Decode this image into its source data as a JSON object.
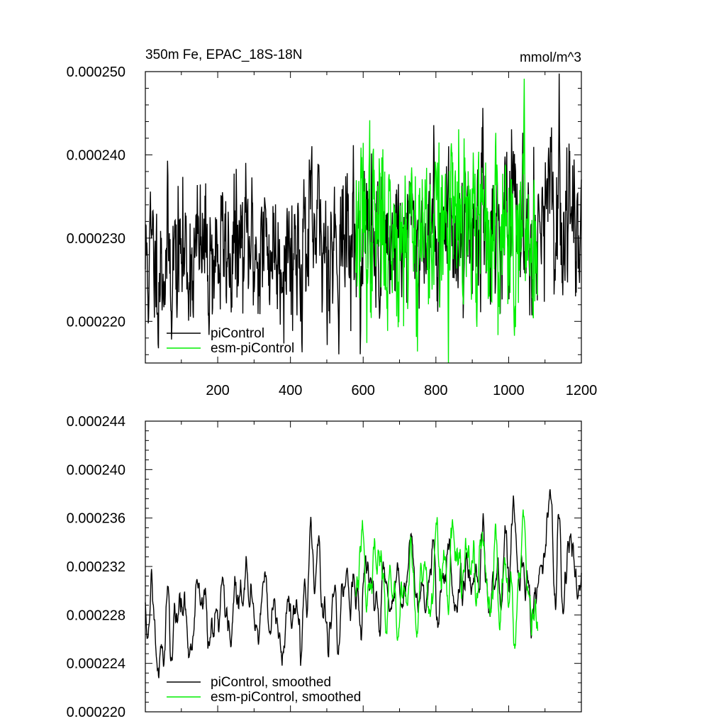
{
  "chart_data": [
    {
      "type": "line",
      "title": "350m Fe, EPAC_18S-18N",
      "units": "mmol/m^3",
      "xlim": [
        1,
        1200
      ],
      "ylim": [
        0.000215,
        0.00025
      ],
      "xticks": [
        200,
        400,
        600,
        800,
        1000,
        1200
      ],
      "xtick_labels": [
        "200",
        "400",
        "600",
        "800",
        "1000",
        "1200"
      ],
      "yticks": [
        0.00022,
        0.00023,
        0.00024,
        0.00025
      ],
      "ytick_labels": [
        "0.000220",
        "0.000230",
        "0.000240",
        "0.000250"
      ],
      "legend_position": "bottom-left",
      "series": [
        {
          "name": "piControl",
          "color": "#000000",
          "x_start": 1,
          "x_end": 1200,
          "n": 1200,
          "mean": 0.00023,
          "trend_per_step": 4.5e-09,
          "std": 4.5e-06,
          "seed": 11
        },
        {
          "name": "esm-piControl",
          "color": "#00ee00",
          "x_start": 580,
          "x_end": 1080,
          "n": 500,
          "mean": 0.000231,
          "trend_per_step": 0.0,
          "std": 5.5e-06,
          "seed": 37
        }
      ]
    },
    {
      "type": "line",
      "title": "",
      "units": "",
      "xlim": [
        1,
        1200
      ],
      "ylim": [
        0.00022,
        0.000244
      ],
      "xticks": [
        200,
        400,
        600,
        800,
        1000,
        1200
      ],
      "xtick_labels": [],
      "yticks": [
        0.00022,
        0.000224,
        0.000228,
        0.000232,
        0.000236,
        0.00024,
        0.000244
      ],
      "ytick_labels": [
        "0.000220",
        "0.000224",
        "0.000228",
        "0.000232",
        "0.000236",
        "0.000240",
        "0.000244"
      ],
      "legend_position": "bottom-left",
      "series": [
        {
          "name": "piControl, smoothed",
          "color": "#000000",
          "x_start": 1,
          "x_end": 1200,
          "n": 1200,
          "mean": 0.00023,
          "trend_per_step": 4.5e-09,
          "std": 4.2e-06,
          "seed": 11,
          "smooth": 5
        },
        {
          "name": "esm-piControl, smoothed",
          "color": "#00ee00",
          "x_start": 580,
          "x_end": 1080,
          "n": 500,
          "mean": 0.000231,
          "trend_per_step": 0.0,
          "std": 5e-06,
          "seed": 37,
          "smooth": 5
        }
      ]
    }
  ]
}
